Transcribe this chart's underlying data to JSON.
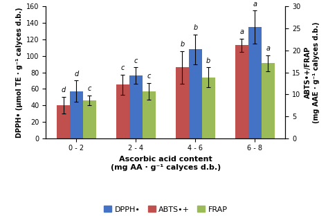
{
  "categories": [
    "0 - 2",
    "2 - 4",
    "4 - 6",
    "6 - 8"
  ],
  "dpph_values": [
    57,
    76,
    108,
    135
  ],
  "dpph_errors": [
    13,
    10,
    18,
    20
  ],
  "abts_values": [
    40,
    65,
    86,
    113
  ],
  "abts_errors": [
    10,
    12,
    20,
    8
  ],
  "frap_values": [
    46,
    57,
    74,
    91
  ],
  "frap_errors": [
    6,
    10,
    12,
    10
  ],
  "dpph_labels": [
    "d",
    "c",
    "b",
    "a"
  ],
  "abts_labels": [
    "d",
    "c",
    "b",
    "a"
  ],
  "frap_labels": [
    "c",
    "c",
    "b",
    "a"
  ],
  "dpph_color": "#4472C4",
  "abts_color": "#C0504D",
  "frap_color": "#9BBB59",
  "left_ylabel": "DPPH• (μmol TE · g⁻¹ calyces d.b.)",
  "right_ylabel": "ABTS•+/FRAP\n(mg AAE · g⁻¹ calyces d.b.)",
  "xlabel_line1": "Ascorbic acid content",
  "xlabel_line2": "(mg AA · g⁻¹ calyces d.b.)",
  "left_ylim": [
    0,
    160
  ],
  "right_ylim": [
    0,
    30
  ],
  "left_yticks": [
    0,
    20,
    40,
    60,
    80,
    100,
    120,
    140,
    160
  ],
  "right_yticks": [
    0,
    5,
    10,
    15,
    20,
    25,
    30
  ],
  "legend_labels": [
    "DPPH•",
    "ABTS•+",
    "FRAP"
  ],
  "bar_width": 0.22,
  "label_fontsize": 7,
  "tick_fontsize": 7,
  "axis_label_fontsize": 7,
  "xlabel_fontsize": 8
}
